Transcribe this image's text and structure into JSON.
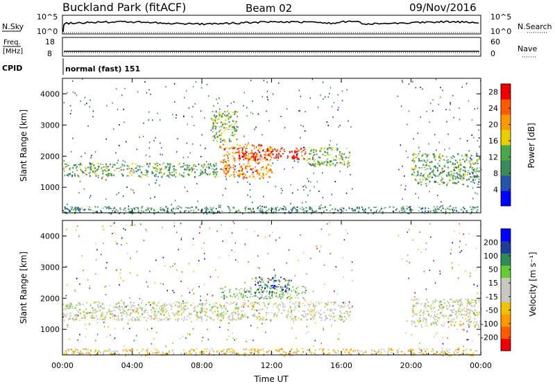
{
  "header": {
    "station": "Buckland Park (fitACF)",
    "beam": "Beam 02",
    "date": "09/Nov/2016"
  },
  "status_panels": {
    "nsky_label": "N.Sky",
    "freq_label_line1": "Freq.",
    "freq_label_line2": "[MHz]",
    "cpid_label": "CPID",
    "nsearch_label": "N.Search",
    "nave_label": "Nave",
    "left_top_tick": "10^5",
    "left_bottom_tick": "10^0",
    "right_top_tick": "10^5",
    "right_bottom_tick": "10^0",
    "freq_ticks": [
      "18",
      "8"
    ],
    "nave_ticks": [
      "60",
      "0"
    ],
    "cpid_text": "normal (fast) 151"
  },
  "colors": {
    "power_scale": [
      "#0000ff",
      "#2255aa",
      "#3a8a5a",
      "#4aa84a",
      "#e8d000",
      "#ff9900",
      "#ff5a00",
      "#ee0000"
    ],
    "velocity_scale": [
      "#ee0000",
      "#ff5a00",
      "#ff9900",
      "#f2c200",
      "#c8c8c0",
      "#c8c8c0",
      "#66cc33",
      "#2e8b57",
      "#1e3c99",
      "#0000ff"
    ]
  },
  "chart_data": [
    {
      "type": "heatmap",
      "name": "power",
      "xlabel": "",
      "ylabel": "Slant Range [km]",
      "xlim": [
        0,
        24
      ],
      "ylim": [
        180,
        4500
      ],
      "ytick_labels": [
        "1000",
        "2000",
        "3000",
        "4000"
      ],
      "yticks": [
        1000,
        2000,
        3000,
        4000
      ],
      "colorbar_label": "Power [dB]",
      "colorbar_ticks": [
        "4",
        "8",
        "12",
        "16",
        "20",
        "24",
        "28"
      ],
      "colorbar_range": [
        0,
        30
      ],
      "echo_regions": [
        {
          "t0": 0,
          "t1": 9,
          "r0": 1350,
          "r1": 1800,
          "value": 12
        },
        {
          "t0": 9,
          "t1": 12,
          "r0": 1300,
          "r1": 2400,
          "value": 22
        },
        {
          "t0": 10,
          "t1": 14,
          "r0": 1900,
          "r1": 2300,
          "value": 27
        },
        {
          "t0": 14,
          "t1": 16.5,
          "r0": 1700,
          "r1": 2300,
          "value": 14
        },
        {
          "t0": 8.5,
          "t1": 10,
          "r0": 2500,
          "r1": 3500,
          "value": 14
        },
        {
          "t0": 20,
          "t1": 24,
          "r0": 1100,
          "r1": 2100,
          "value": 12
        },
        {
          "t0": 0,
          "t1": 24,
          "r0": 180,
          "r1": 400,
          "value": 10
        }
      ]
    },
    {
      "type": "heatmap",
      "name": "velocity",
      "xlabel": "Time UT",
      "ylabel": "Slant Range [km]",
      "xlim": [
        0,
        24
      ],
      "ylim": [
        180,
        4500
      ],
      "ytick_labels": [
        "1000",
        "2000",
        "3000",
        "4000"
      ],
      "yticks": [
        1000,
        2000,
        3000,
        4000
      ],
      "xtick_labels": [
        "00:00",
        "04:00",
        "08:00",
        "12:00",
        "16:00",
        "20:00",
        "00:00"
      ],
      "xticks": [
        0,
        4,
        8,
        12,
        16,
        20,
        24
      ],
      "colorbar_label": "Velocity [m s⁻¹]",
      "colorbar_ticks": [
        "-200",
        "-100",
        "-50",
        "-15",
        "15",
        "50",
        "100",
        "200"
      ],
      "colorbar_range": [
        -250,
        250
      ],
      "echo_regions": [
        {
          "t0": 0,
          "t1": 16.5,
          "r0": 1300,
          "r1": 1900,
          "value": 0
        },
        {
          "t0": 9,
          "t1": 14,
          "r0": 2000,
          "r1": 2400,
          "value": 60
        },
        {
          "t0": 11,
          "t1": 13,
          "r0": 2200,
          "r1": 2700,
          "value": 150
        },
        {
          "t0": 20,
          "t1": 24,
          "r0": 1100,
          "r1": 2000,
          "value": 0
        },
        {
          "t0": 0,
          "t1": 24,
          "r0": 180,
          "r1": 400,
          "value": -60
        }
      ]
    }
  ]
}
